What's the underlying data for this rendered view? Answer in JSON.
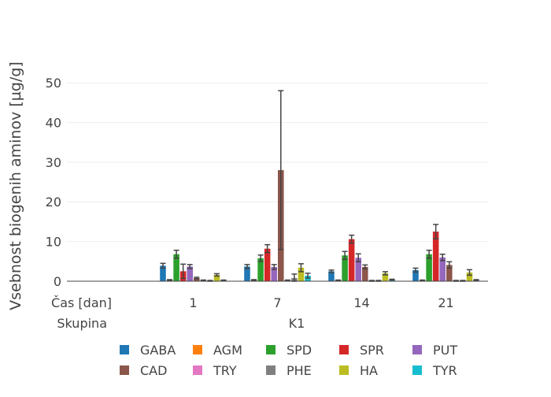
{
  "chart_data": {
    "type": "bar",
    "ylabel": "Vsebnost biogenih aminov [µg/g]",
    "ylim": [
      0,
      52
    ],
    "yticks": [
      0,
      10,
      20,
      30,
      40,
      50
    ],
    "grid": true,
    "legend_position": "bottom",
    "xaxis": {
      "row1_label": "Čas [dan]",
      "row2_label": "Skupina",
      "categories": [
        "1",
        "7",
        "14",
        "21"
      ],
      "group": "K1"
    },
    "series": [
      {
        "name": "GABA",
        "color": "#1f77b4",
        "values": [
          3.9,
          3.7,
          2.5,
          2.8
        ],
        "errors": [
          0.6,
          0.5,
          0.3,
          0.5
        ]
      },
      {
        "name": "AGM",
        "color": "#ff7f0e",
        "values": [
          0.3,
          0.3,
          0.2,
          0.2
        ],
        "errors": [
          0.1,
          0.1,
          0.1,
          0.1
        ]
      },
      {
        "name": "SPD",
        "color": "#2ca02c",
        "values": [
          6.8,
          5.8,
          6.5,
          6.8
        ],
        "errors": [
          1.0,
          0.8,
          1.0,
          1.0
        ]
      },
      {
        "name": "SPR",
        "color": "#d62728",
        "values": [
          2.5,
          8.2,
          10.6,
          12.5
        ],
        "errors": [
          1.8,
          1.0,
          1.0,
          1.8
        ]
      },
      {
        "name": "PUT",
        "color": "#9467bd",
        "values": [
          3.7,
          3.6,
          5.9,
          6.0
        ],
        "errors": [
          0.5,
          0.6,
          1.0,
          0.8
        ]
      },
      {
        "name": "CAD",
        "color": "#8c564b",
        "values": [
          0.8,
          28.0,
          3.6,
          4.1
        ],
        "errors": [
          0.2,
          20.0,
          0.5,
          0.8
        ]
      },
      {
        "name": "TRY",
        "color": "#e377c2",
        "values": [
          0.2,
          0.2,
          0.1,
          0.1
        ],
        "errors": [
          0.1,
          0.1,
          0.1,
          0.1
        ]
      },
      {
        "name": "PHE",
        "color": "#7f7f7f",
        "values": [
          0.1,
          0.8,
          0.1,
          0.1
        ],
        "errors": [
          0.1,
          1.0,
          0.1,
          0.1
        ]
      },
      {
        "name": "HA",
        "color": "#bcbd22",
        "values": [
          1.6,
          3.4,
          2.0,
          2.2
        ],
        "errors": [
          0.3,
          1.0,
          0.4,
          0.7
        ]
      },
      {
        "name": "TYR",
        "color": "#17becf",
        "values": [
          0.2,
          1.4,
          0.4,
          0.3
        ],
        "errors": [
          0.1,
          0.6,
          0.1,
          0.1
        ]
      }
    ]
  }
}
